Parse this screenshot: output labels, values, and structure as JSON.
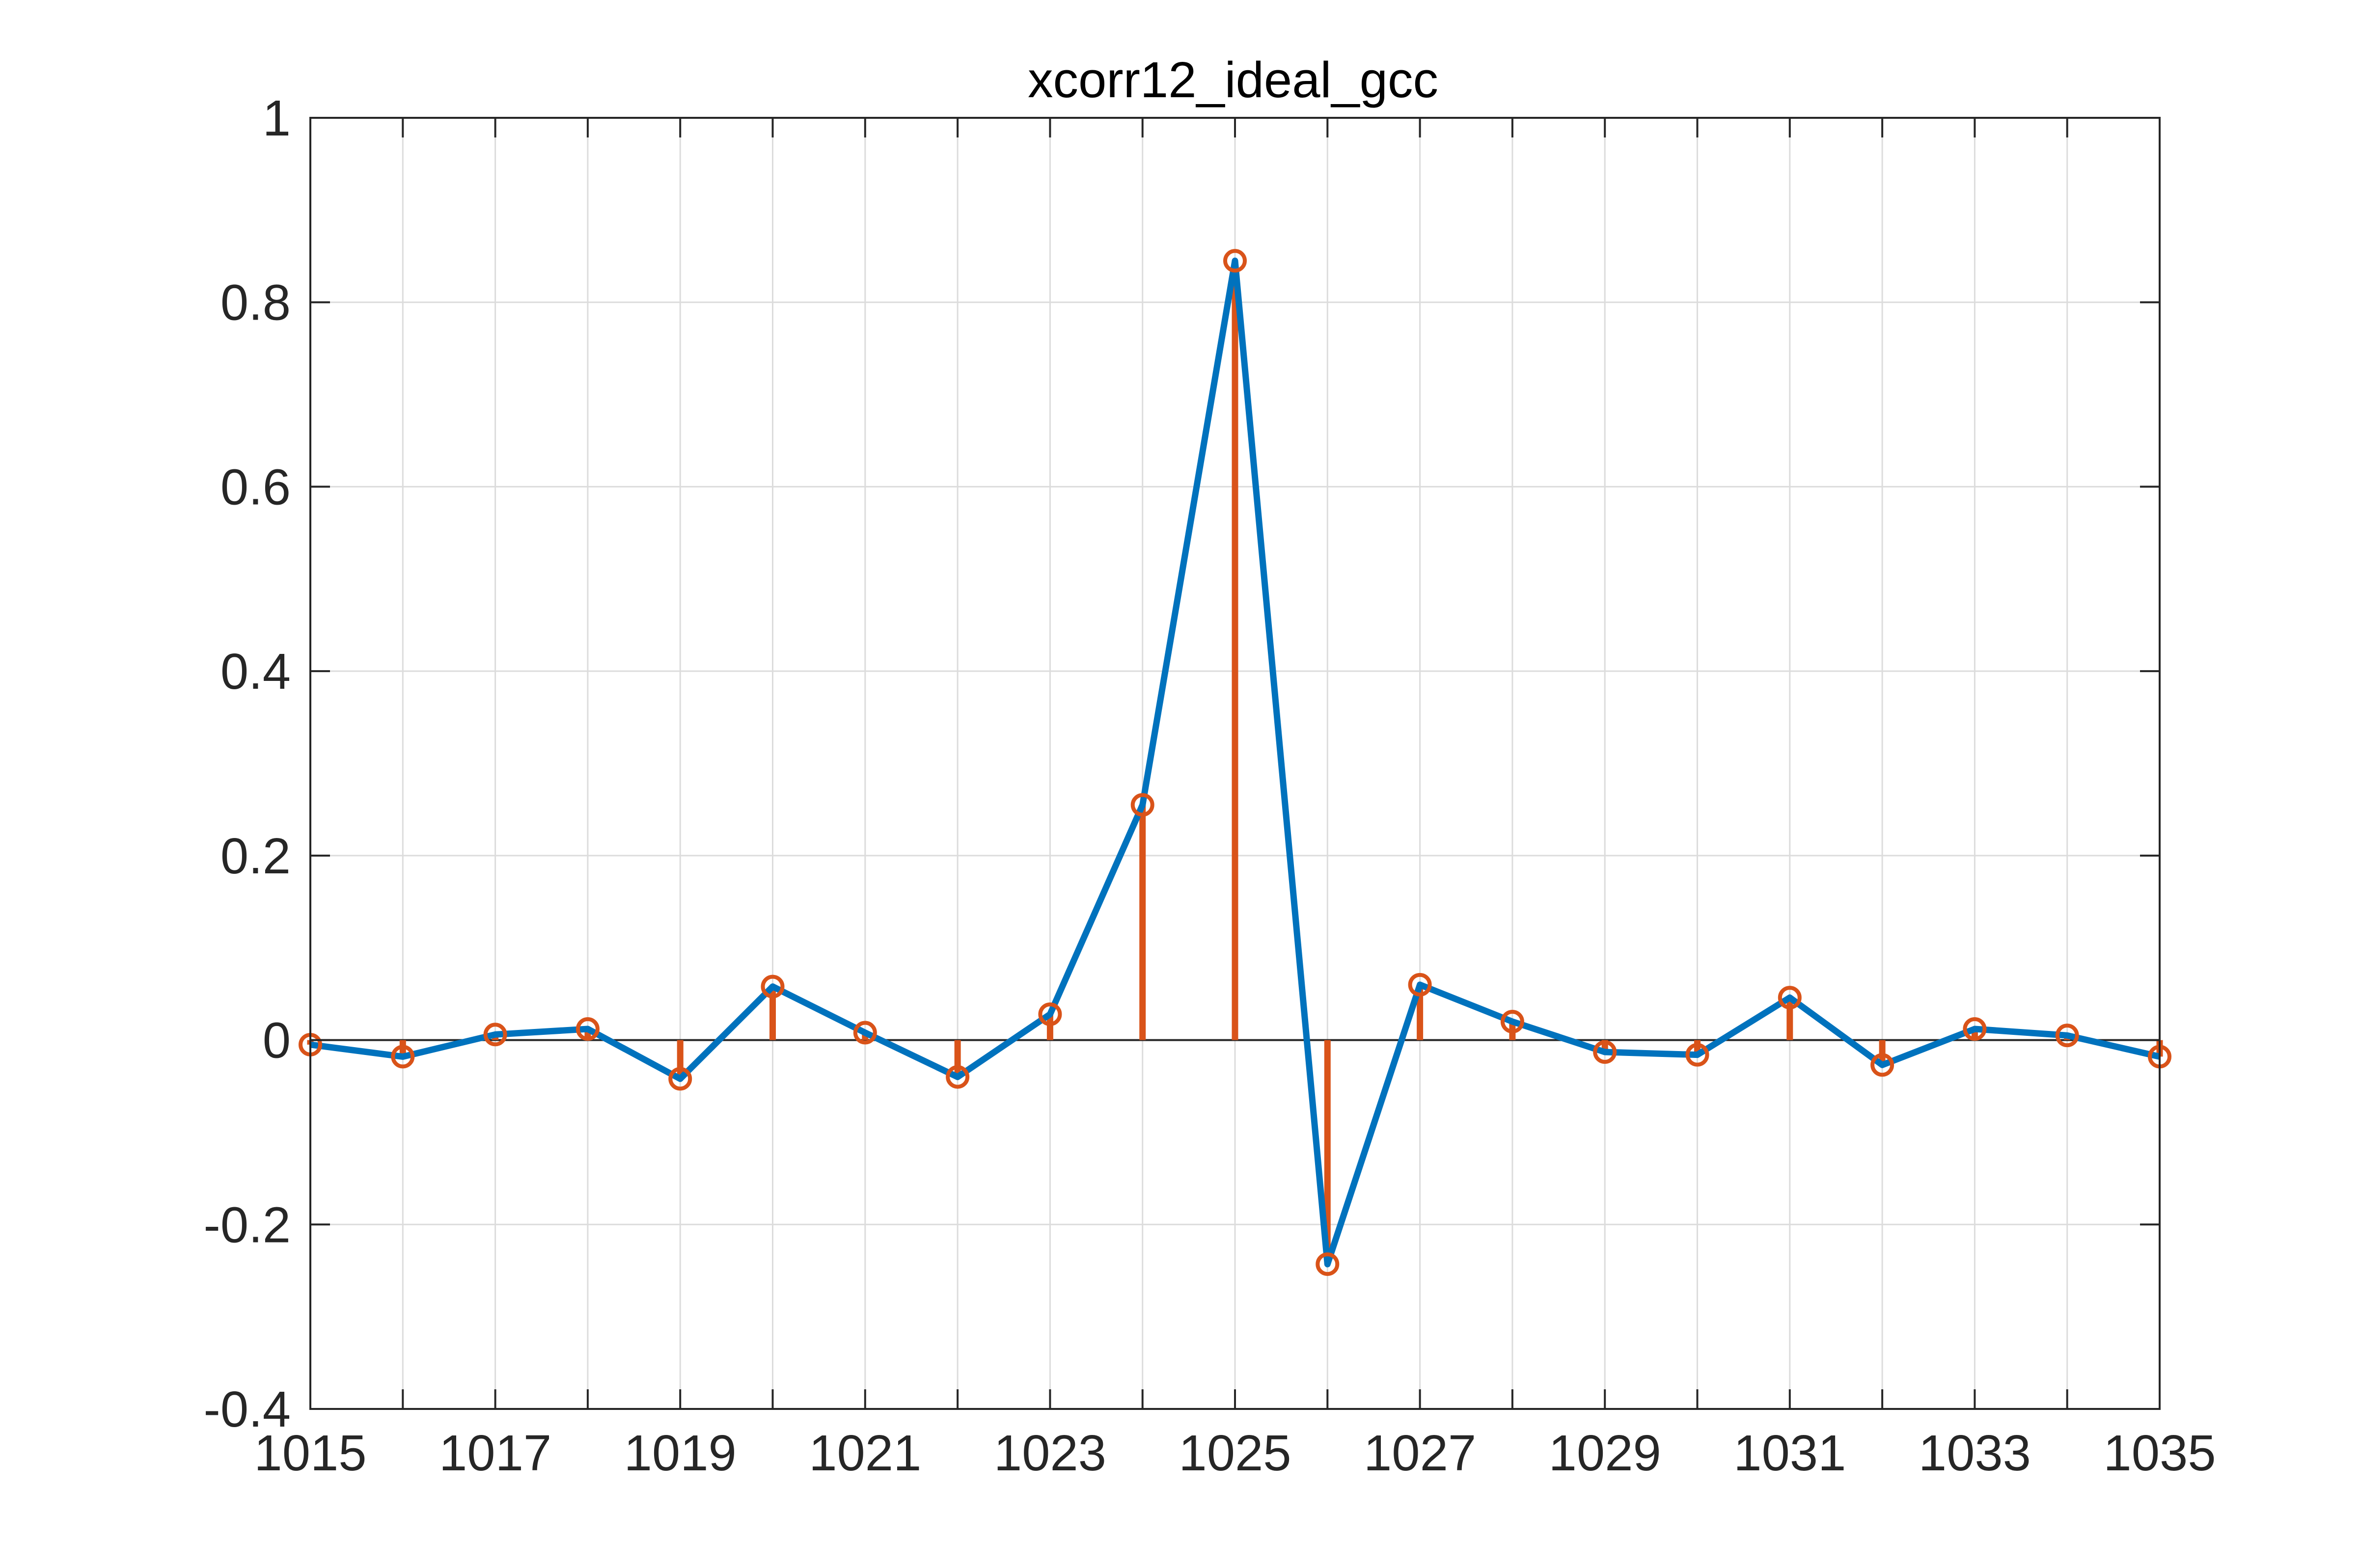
{
  "chart_data": {
    "type": "line",
    "title": "xcorr12_ideal_gcc",
    "xlabel": "",
    "ylabel": "",
    "xlim": [
      1015,
      1035
    ],
    "ylim": [
      -0.4,
      1
    ],
    "xticks": [
      1015,
      1017,
      1019,
      1021,
      1023,
      1025,
      1027,
      1029,
      1031,
      1033,
      1035
    ],
    "xtick_labels": [
      "1015",
      "1017",
      "1019",
      "1021",
      "1023",
      "1025",
      "1027",
      "1029",
      "1031",
      "1033",
      "1035"
    ],
    "yticks": [
      -0.4,
      -0.2,
      0,
      0.2,
      0.4,
      0.6,
      0.8,
      1
    ],
    "ytick_labels": [
      "-0.4",
      "-0.2",
      "0",
      "0.2",
      "0.4",
      "0.6",
      "0.8",
      "1"
    ],
    "grid": true,
    "x": [
      1015,
      1016,
      1017,
      1018,
      1019,
      1020,
      1021,
      1022,
      1023,
      1024,
      1025,
      1026,
      1027,
      1028,
      1029,
      1030,
      1031,
      1032,
      1033,
      1034,
      1035
    ],
    "series": [
      {
        "style": "line",
        "color": "#0072BD",
        "values": [
          -0.005,
          -0.018,
          0.006,
          0.012,
          -0.042,
          0.058,
          0.008,
          -0.04,
          0.028,
          0.255,
          0.845,
          -0.243,
          0.06,
          0.02,
          -0.013,
          -0.016,
          0.046,
          -0.027,
          0.012,
          0.005,
          -0.018
        ]
      },
      {
        "style": "stem",
        "color": "#D95319",
        "values": [
          -0.005,
          -0.018,
          0.006,
          0.012,
          -0.042,
          0.058,
          0.008,
          -0.04,
          0.028,
          0.255,
          0.845,
          -0.243,
          0.06,
          0.02,
          -0.013,
          -0.016,
          0.046,
          -0.027,
          0.012,
          0.005,
          -0.018
        ]
      }
    ]
  }
}
